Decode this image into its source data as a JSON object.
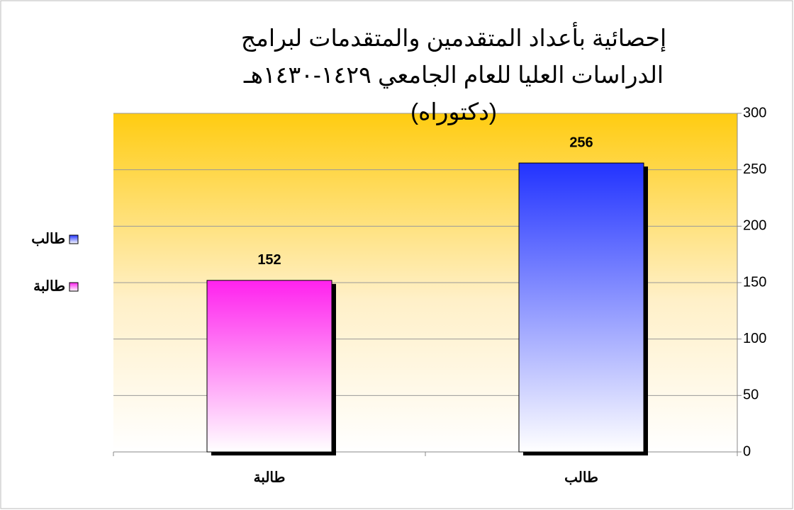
{
  "chart_data": {
    "type": "bar",
    "title": "إحصائية بأعداد المتقدمين والمتقدمات لبرامج الدراسات العليا للعام الجامعي ١٤٢٩-١٤٣٠هـ (دكتوراه)",
    "categories": [
      "طالبة",
      "طالب"
    ],
    "values": [
      152,
      256
    ],
    "colors": [
      "#ff22ee",
      "#2233ff"
    ],
    "ylim": [
      0,
      300
    ],
    "yticks": [
      0,
      50,
      100,
      150,
      200,
      250,
      300
    ],
    "grid": true,
    "legend": "left"
  }
}
